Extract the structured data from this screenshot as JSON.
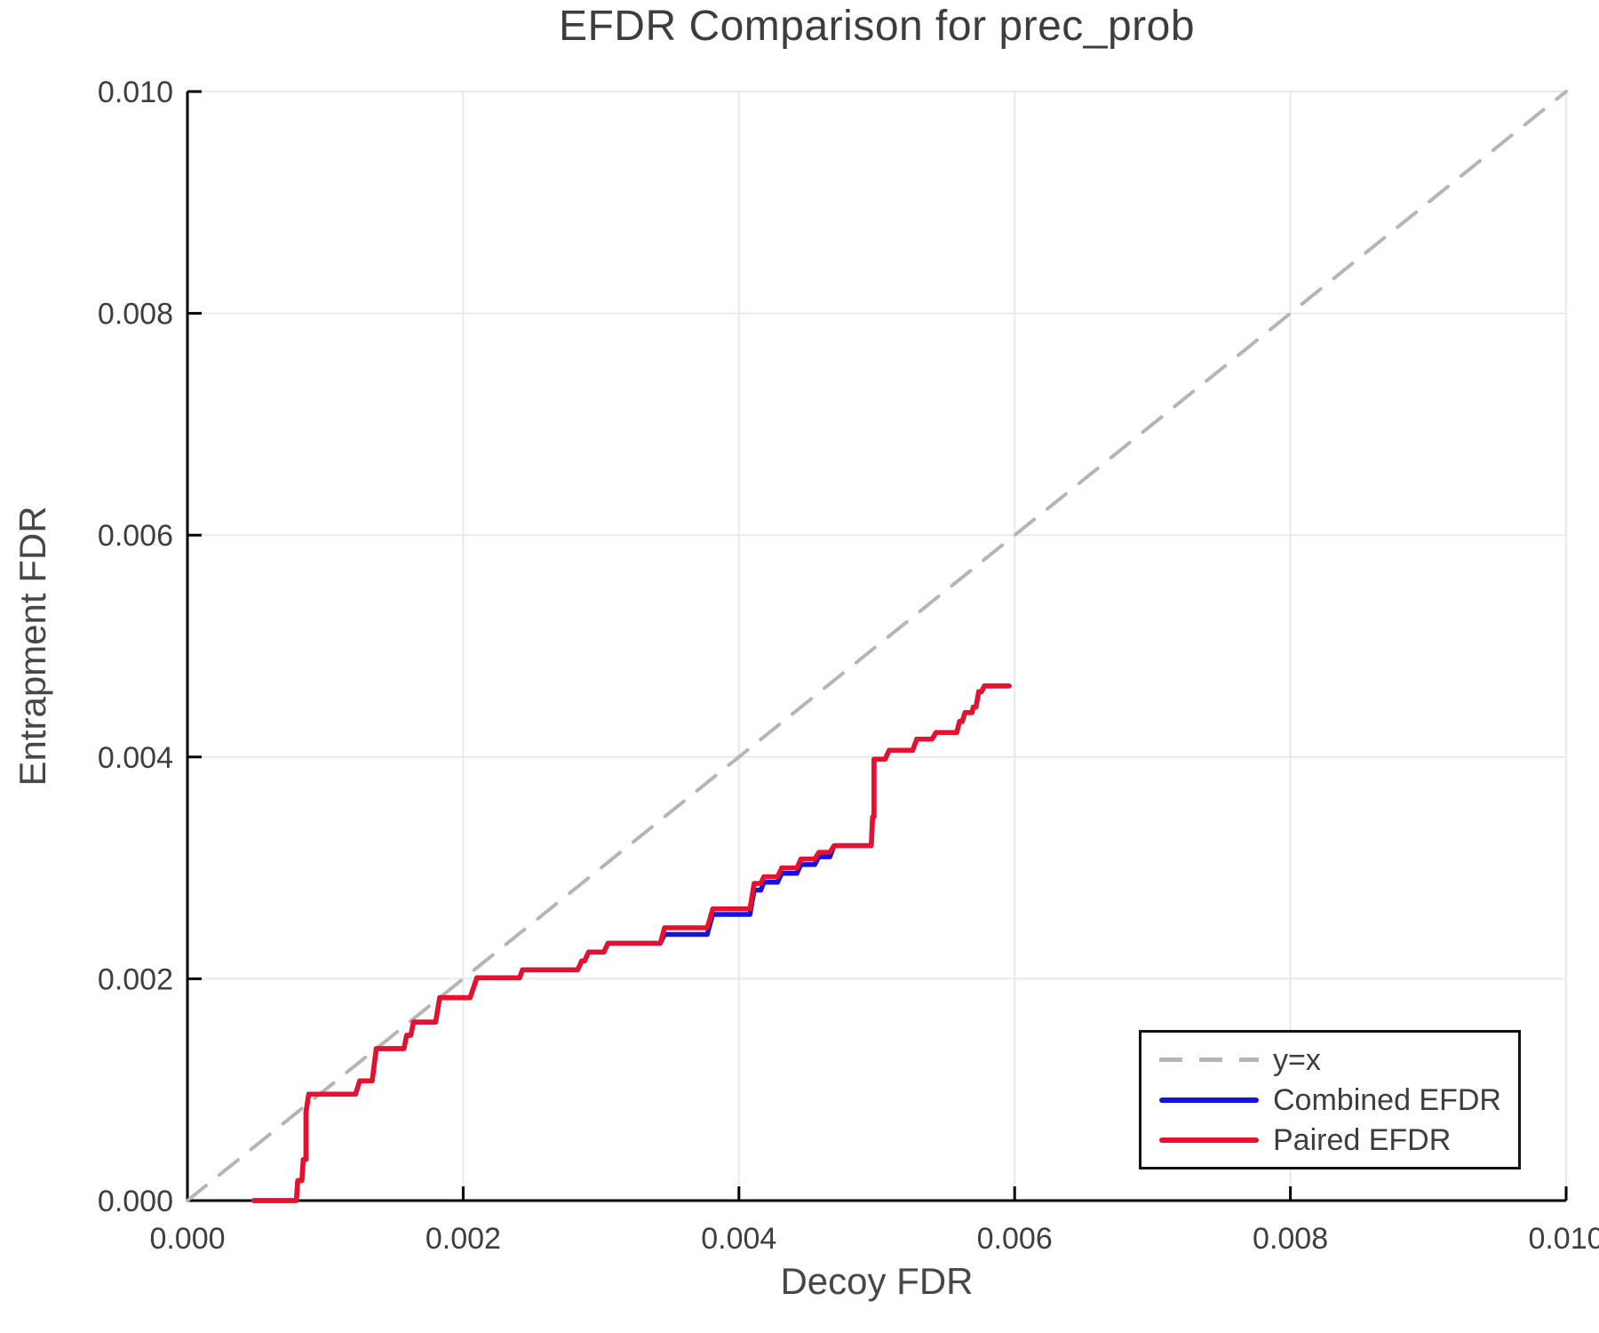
{
  "chart_data": {
    "type": "line",
    "title": "EFDR Comparison for prec_prob",
    "xlabel": "Decoy FDR",
    "ylabel": "Entrapment FDR",
    "xlim": [
      0.0,
      0.01
    ],
    "ylim": [
      0.0,
      0.01
    ],
    "grid": true,
    "legend_position": "lower right",
    "colors": {
      "text": "#3d3d3d",
      "tick_text": "#3e3e3e",
      "axis": "#000000",
      "grid": "#e9e9e9",
      "diagonal": "#b5b5b5",
      "combined": "#1613e0",
      "paired": "#e8112d"
    },
    "xticks": {
      "values": [
        0.0,
        0.002,
        0.004,
        0.006,
        0.008,
        0.01
      ],
      "labels": [
        "0.000",
        "0.002",
        "0.004",
        "0.006",
        "0.008",
        "0.010"
      ]
    },
    "yticks": {
      "values": [
        0.0,
        0.002,
        0.004,
        0.006,
        0.008,
        0.01
      ],
      "labels": [
        "0.000",
        "0.002",
        "0.004",
        "0.006",
        "0.008",
        "0.010"
      ]
    },
    "legend": [
      {
        "label": "y=x",
        "color": "#b5b5b5",
        "dash": true
      },
      {
        "label": "Combined EFDR",
        "color": "#1613e0",
        "dash": false
      },
      {
        "label": "Paired EFDR",
        "color": "#e8112d",
        "dash": false
      }
    ],
    "series": [
      {
        "name": "y=x",
        "color": "#b5b5b5",
        "dash": true,
        "width": 4,
        "points": [
          [
            0.0,
            0.0
          ],
          [
            0.01,
            0.01
          ]
        ]
      },
      {
        "name": "Combined EFDR",
        "color": "#1613e0",
        "dash": false,
        "width": 5.5,
        "points": [
          [
            0.00048,
            0.0
          ],
          [
            0.00079,
            0.0
          ],
          [
            0.0008,
            0.00018
          ],
          [
            0.00083,
            0.00018
          ],
          [
            0.00084,
            0.00037
          ],
          [
            0.00086,
            0.00037
          ],
          [
            0.00086,
            0.0008
          ],
          [
            0.00088,
            0.00096
          ],
          [
            0.00122,
            0.00096
          ],
          [
            0.00125,
            0.00108
          ],
          [
            0.00134,
            0.00108
          ],
          [
            0.00137,
            0.00137
          ],
          [
            0.00157,
            0.00137
          ],
          [
            0.00159,
            0.00149
          ],
          [
            0.00162,
            0.00149
          ],
          [
            0.00164,
            0.00161
          ],
          [
            0.0018,
            0.00161
          ],
          [
            0.00183,
            0.00183
          ],
          [
            0.00205,
            0.00183
          ],
          [
            0.0021,
            0.00201
          ],
          [
            0.00241,
            0.00201
          ],
          [
            0.00243,
            0.00208
          ],
          [
            0.00283,
            0.00208
          ],
          [
            0.00286,
            0.00216
          ],
          [
            0.00288,
            0.00216
          ],
          [
            0.00291,
            0.00224
          ],
          [
            0.00302,
            0.00224
          ],
          [
            0.00305,
            0.00232
          ],
          [
            0.00343,
            0.00232
          ],
          [
            0.00346,
            0.0024
          ],
          [
            0.00377,
            0.0024
          ],
          [
            0.00381,
            0.00258
          ],
          [
            0.00408,
            0.00258
          ],
          [
            0.00411,
            0.0028
          ],
          [
            0.00416,
            0.0028
          ],
          [
            0.00418,
            0.00287
          ],
          [
            0.00428,
            0.00287
          ],
          [
            0.00431,
            0.00295
          ],
          [
            0.00442,
            0.00295
          ],
          [
            0.00445,
            0.00303
          ],
          [
            0.00455,
            0.00303
          ],
          [
            0.00458,
            0.0031
          ],
          [
            0.00466,
            0.0031
          ],
          [
            0.00469,
            0.0032
          ],
          [
            0.00496,
            0.0032
          ],
          [
            0.00497,
            0.00346
          ],
          [
            0.00498,
            0.00346
          ],
          [
            0.00498,
            0.00398
          ],
          [
            0.00506,
            0.00398
          ],
          [
            0.00509,
            0.00406
          ],
          [
            0.00526,
            0.00406
          ],
          [
            0.00529,
            0.00416
          ],
          [
            0.0054,
            0.00416
          ],
          [
            0.00543,
            0.00422
          ],
          [
            0.00558,
            0.00422
          ],
          [
            0.0056,
            0.00432
          ],
          [
            0.00562,
            0.00432
          ],
          [
            0.00564,
            0.0044
          ],
          [
            0.00569,
            0.0044
          ],
          [
            0.0057,
            0.00445
          ],
          [
            0.00572,
            0.00445
          ],
          [
            0.00574,
            0.00459
          ],
          [
            0.00576,
            0.00459
          ],
          [
            0.00578,
            0.00464
          ],
          [
            0.00596,
            0.00464
          ]
        ]
      },
      {
        "name": "Paired EFDR",
        "color": "#e8112d",
        "dash": false,
        "width": 5.5,
        "points": [
          [
            0.00048,
            0.0
          ],
          [
            0.00079,
            0.0
          ],
          [
            0.0008,
            0.00018
          ],
          [
            0.00083,
            0.00018
          ],
          [
            0.00084,
            0.00037
          ],
          [
            0.00086,
            0.00037
          ],
          [
            0.00086,
            0.0008
          ],
          [
            0.00088,
            0.00096
          ],
          [
            0.00122,
            0.00096
          ],
          [
            0.00125,
            0.00108
          ],
          [
            0.00134,
            0.00108
          ],
          [
            0.00137,
            0.00137
          ],
          [
            0.00157,
            0.00137
          ],
          [
            0.00159,
            0.00149
          ],
          [
            0.00162,
            0.00149
          ],
          [
            0.00164,
            0.00161
          ],
          [
            0.0018,
            0.00161
          ],
          [
            0.00183,
            0.00183
          ],
          [
            0.00205,
            0.00183
          ],
          [
            0.0021,
            0.00201
          ],
          [
            0.00241,
            0.00201
          ],
          [
            0.00243,
            0.00208
          ],
          [
            0.00283,
            0.00208
          ],
          [
            0.00286,
            0.00216
          ],
          [
            0.00288,
            0.00216
          ],
          [
            0.00291,
            0.00224
          ],
          [
            0.00302,
            0.00224
          ],
          [
            0.00305,
            0.00232
          ],
          [
            0.00343,
            0.00232
          ],
          [
            0.00346,
            0.00246
          ],
          [
            0.00377,
            0.00246
          ],
          [
            0.00381,
            0.00263
          ],
          [
            0.00408,
            0.00263
          ],
          [
            0.00411,
            0.00286
          ],
          [
            0.00416,
            0.00286
          ],
          [
            0.00418,
            0.00292
          ],
          [
            0.00428,
            0.00292
          ],
          [
            0.00431,
            0.003
          ],
          [
            0.00442,
            0.003
          ],
          [
            0.00445,
            0.00308
          ],
          [
            0.00455,
            0.00308
          ],
          [
            0.00458,
            0.00314
          ],
          [
            0.00466,
            0.00314
          ],
          [
            0.00469,
            0.0032
          ],
          [
            0.00496,
            0.0032
          ],
          [
            0.00497,
            0.00346
          ],
          [
            0.00498,
            0.00346
          ],
          [
            0.00498,
            0.00398
          ],
          [
            0.00506,
            0.00398
          ],
          [
            0.00509,
            0.00406
          ],
          [
            0.00526,
            0.00406
          ],
          [
            0.00529,
            0.00416
          ],
          [
            0.0054,
            0.00416
          ],
          [
            0.00543,
            0.00422
          ],
          [
            0.00558,
            0.00422
          ],
          [
            0.0056,
            0.00432
          ],
          [
            0.00562,
            0.00432
          ],
          [
            0.00564,
            0.0044
          ],
          [
            0.00569,
            0.0044
          ],
          [
            0.0057,
            0.00445
          ],
          [
            0.00572,
            0.00445
          ],
          [
            0.00574,
            0.00459
          ],
          [
            0.00576,
            0.00459
          ],
          [
            0.00578,
            0.00464
          ],
          [
            0.00596,
            0.00464
          ]
        ]
      }
    ]
  }
}
